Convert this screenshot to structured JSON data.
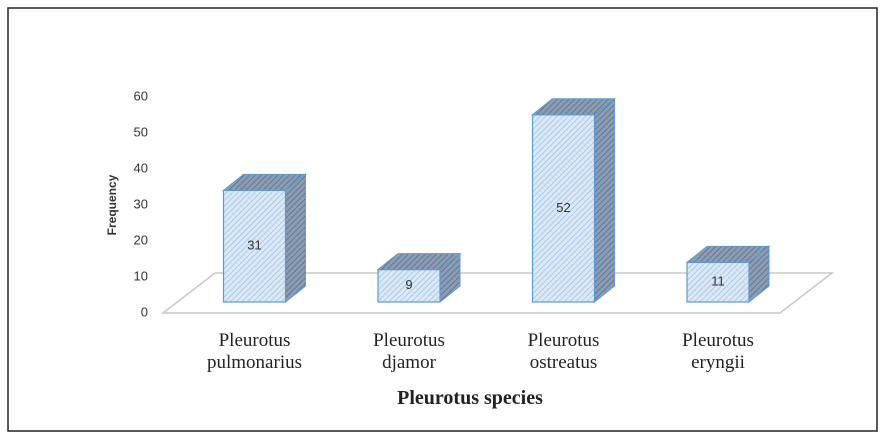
{
  "chart_data": {
    "type": "bar3d",
    "x_label": "Pleurotus species",
    "y_label": "Frequency",
    "categories": [
      "Pleurotus pulmonarius",
      "Pleurotus djamor",
      "Pleurotus ostreatus",
      "Pleurotus eryngii"
    ],
    "values": [
      31,
      9,
      52,
      11
    ],
    "color": "#dbe9f7",
    "ylim": [
      0,
      60
    ],
    "yticks": [
      0,
      10,
      20,
      30,
      40,
      50,
      60
    ],
    "grid": false
  }
}
